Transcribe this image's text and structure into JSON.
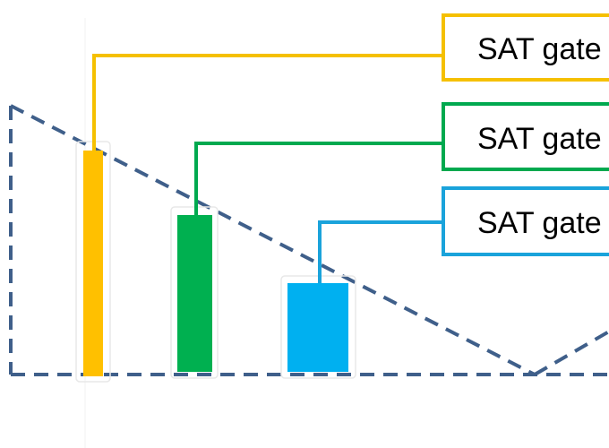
{
  "labels": [
    {
      "text": "SAT gate",
      "color": "#F5C000"
    },
    {
      "text": "SAT gate",
      "color": "#00A94F"
    },
    {
      "text": "SAT gate",
      "color": "#1AA3DB"
    }
  ],
  "bars": [
    {
      "color": "#FFC000"
    },
    {
      "color": "#00B050"
    },
    {
      "color": "#00B0F0"
    }
  ],
  "outline_color": "#3F5F8A",
  "bar_border_color": "#E8E8E8"
}
